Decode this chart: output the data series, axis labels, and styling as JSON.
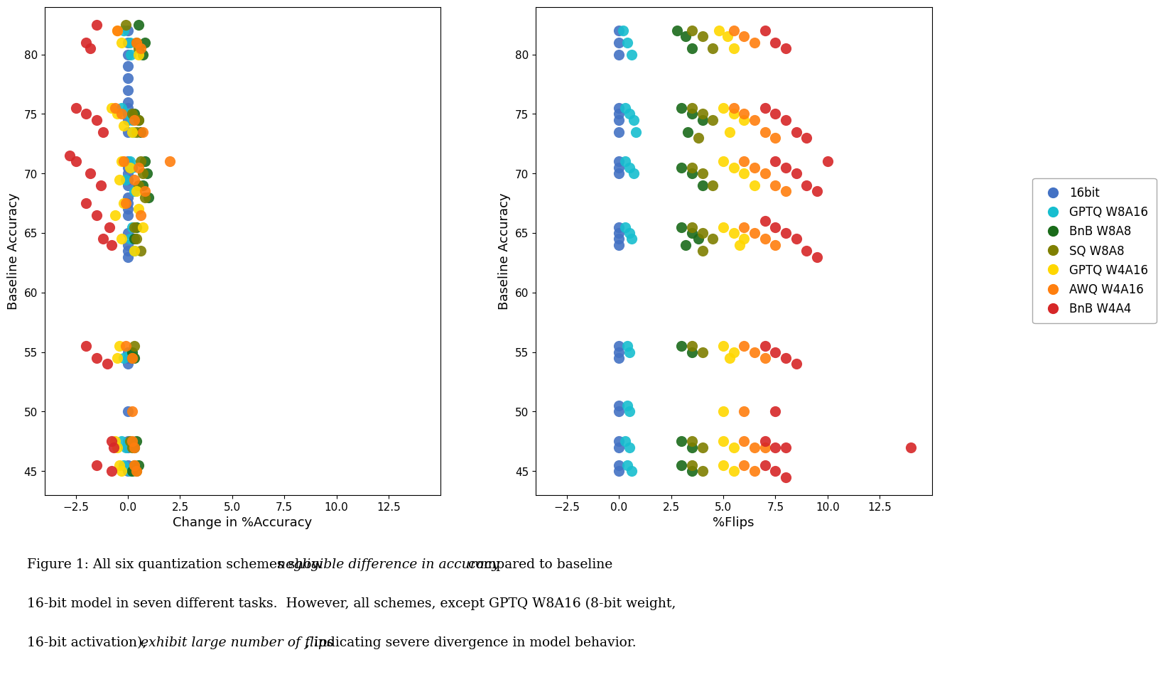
{
  "colors": {
    "16bit": "#4472C4",
    "GPTQ W8A16": "#17BECF",
    "BnB W8A8": "#1A6B1A",
    "SQ W8A8": "#7F7F00",
    "GPTQ W4A16": "#FFD700",
    "AWQ W4A16": "#FF7F0E",
    "BnB W4A4": "#D62728"
  },
  "legend_labels": [
    "16bit",
    "GPTQ W8A16",
    "BnB W8A8",
    "SQ W8A8",
    "GPTQ W4A16",
    "AWQ W4A16",
    "BnB W4A4"
  ],
  "xlabel_left": "Change in %Accuracy",
  "xlabel_right": "%Flips",
  "ylabel": "Baseline Accuracy",
  "xlim": [
    -4,
    15
  ],
  "ylim": [
    43,
    84
  ],
  "xticks": [
    -2.5,
    0.0,
    2.5,
    5.0,
    7.5,
    10.0,
    12.5
  ],
  "yticks": [
    45,
    50,
    55,
    60,
    65,
    70,
    75,
    80
  ],
  "marker_size": 120,
  "alpha": 0.9,
  "left_points": {
    "16bit": [
      [
        0.0,
        82
      ],
      [
        0.0,
        81
      ],
      [
        0.0,
        80
      ],
      [
        0.0,
        79
      ],
      [
        0.0,
        78
      ],
      [
        0.0,
        77
      ],
      [
        0.0,
        76
      ],
      [
        0.0,
        75.5
      ],
      [
        0.0,
        75
      ],
      [
        0.0,
        74.5
      ],
      [
        0.0,
        73.5
      ],
      [
        0.0,
        71
      ],
      [
        0.0,
        70.5
      ],
      [
        0.0,
        70
      ],
      [
        0.0,
        69.5
      ],
      [
        0.0,
        69
      ],
      [
        0.0,
        68
      ],
      [
        0.0,
        67.5
      ],
      [
        0.0,
        67
      ],
      [
        0.0,
        66.5
      ],
      [
        0.0,
        65
      ],
      [
        0.0,
        64
      ],
      [
        0.0,
        63.5
      ],
      [
        0.0,
        63
      ],
      [
        0.0,
        55
      ],
      [
        0.0,
        54.5
      ],
      [
        0.0,
        54
      ],
      [
        0.0,
        50
      ],
      [
        0.0,
        47.5
      ],
      [
        0.0,
        47
      ],
      [
        0.0,
        45.5
      ],
      [
        0.0,
        45
      ]
    ],
    "GPTQ W8A16": [
      [
        -0.2,
        82
      ],
      [
        0.1,
        81
      ],
      [
        0.15,
        80
      ],
      [
        -0.3,
        75.5
      ],
      [
        0.0,
        75
      ],
      [
        0.2,
        74.5
      ],
      [
        0.25,
        73.5
      ],
      [
        0.1,
        71
      ],
      [
        0.2,
        70.5
      ],
      [
        -0.1,
        69.5
      ],
      [
        0.3,
        68.5
      ],
      [
        0.2,
        65.5
      ],
      [
        0.1,
        64.5
      ],
      [
        0.3,
        63.5
      ],
      [
        0.1,
        55
      ],
      [
        -0.2,
        54.5
      ],
      [
        -0.3,
        47.5
      ],
      [
        -0.1,
        47
      ],
      [
        -0.2,
        45.5
      ],
      [
        0.1,
        45
      ]
    ],
    "BnB W8A8": [
      [
        0.5,
        82.5
      ],
      [
        0.8,
        81
      ],
      [
        0.7,
        80
      ],
      [
        0.3,
        75
      ],
      [
        0.5,
        74.5
      ],
      [
        0.6,
        73.5
      ],
      [
        0.8,
        71
      ],
      [
        0.9,
        70
      ],
      [
        0.7,
        69
      ],
      [
        1.0,
        68
      ],
      [
        0.4,
        65.5
      ],
      [
        0.3,
        64.5
      ],
      [
        0.2,
        55
      ],
      [
        0.3,
        54.5
      ],
      [
        0.4,
        47.5
      ],
      [
        0.3,
        47
      ],
      [
        0.5,
        45.5
      ],
      [
        0.2,
        45
      ]
    ],
    "SQ W8A8": [
      [
        -0.1,
        82.5
      ],
      [
        0.4,
        81
      ],
      [
        0.5,
        80.5
      ],
      [
        0.2,
        75
      ],
      [
        0.5,
        74.5
      ],
      [
        0.4,
        73.5
      ],
      [
        0.6,
        71
      ],
      [
        0.7,
        70
      ],
      [
        0.5,
        69
      ],
      [
        0.8,
        68
      ],
      [
        0.3,
        65.5
      ],
      [
        0.4,
        64.5
      ],
      [
        0.6,
        63.5
      ],
      [
        0.3,
        55.5
      ],
      [
        0.2,
        54.5
      ],
      [
        0.1,
        47.5
      ],
      [
        0.2,
        47
      ],
      [
        0.3,
        45.5
      ],
      [
        0.4,
        45
      ]
    ],
    "GPTQ W4A16": [
      [
        -0.5,
        82
      ],
      [
        -0.3,
        81
      ],
      [
        0.5,
        80
      ],
      [
        -0.8,
        75.5
      ],
      [
        -0.5,
        75
      ],
      [
        -0.2,
        74
      ],
      [
        0.2,
        73.5
      ],
      [
        -0.3,
        71
      ],
      [
        0.1,
        70.5
      ],
      [
        -0.4,
        69.5
      ],
      [
        0.4,
        68.5
      ],
      [
        -0.2,
        67.5
      ],
      [
        0.5,
        67
      ],
      [
        -0.6,
        66.5
      ],
      [
        0.7,
        65.5
      ],
      [
        -0.3,
        64.5
      ],
      [
        0.3,
        63.5
      ],
      [
        -0.4,
        55.5
      ],
      [
        -0.5,
        54.5
      ],
      [
        -0.6,
        47.5
      ],
      [
        -0.5,
        47
      ],
      [
        -0.4,
        45.5
      ],
      [
        -0.3,
        45
      ]
    ],
    "AWQ W4A16": [
      [
        -0.5,
        82
      ],
      [
        0.4,
        81
      ],
      [
        0.6,
        80.5
      ],
      [
        -0.6,
        75.5
      ],
      [
        -0.3,
        75
      ],
      [
        0.3,
        74.5
      ],
      [
        0.7,
        73.5
      ],
      [
        -0.2,
        71
      ],
      [
        0.5,
        70.5
      ],
      [
        0.3,
        69.5
      ],
      [
        0.8,
        68.5
      ],
      [
        -0.1,
        67.5
      ],
      [
        0.6,
        66.5
      ],
      [
        2.0,
        71.0
      ],
      [
        -0.1,
        55.5
      ],
      [
        0.2,
        54.5
      ],
      [
        0.2,
        50
      ],
      [
        0.2,
        47.5
      ],
      [
        0.3,
        47
      ],
      [
        0.3,
        45.5
      ],
      [
        0.4,
        45
      ]
    ],
    "BnB W4A4": [
      [
        -1.5,
        82.5
      ],
      [
        -2.0,
        81
      ],
      [
        -1.8,
        80.5
      ],
      [
        -2.5,
        75.5
      ],
      [
        -2.0,
        75
      ],
      [
        -1.5,
        74.5
      ],
      [
        -1.2,
        73.5
      ],
      [
        -2.8,
        71.5
      ],
      [
        -2.5,
        71
      ],
      [
        -1.8,
        70
      ],
      [
        -1.3,
        69
      ],
      [
        -2.0,
        67.5
      ],
      [
        -1.5,
        66.5
      ],
      [
        -0.9,
        65.5
      ],
      [
        -1.2,
        64.5
      ],
      [
        -0.8,
        64
      ],
      [
        -2.0,
        55.5
      ],
      [
        -1.5,
        54.5
      ],
      [
        -1.0,
        54
      ],
      [
        -0.8,
        47.5
      ],
      [
        -0.7,
        47
      ],
      [
        -1.5,
        45.5
      ],
      [
        -0.8,
        45
      ]
    ]
  },
  "right_points": {
    "16bit": [
      [
        0.0,
        82
      ],
      [
        0.0,
        81
      ],
      [
        0.0,
        80
      ],
      [
        0.0,
        75.5
      ],
      [
        0.0,
        75
      ],
      [
        0.0,
        74.5
      ],
      [
        0.0,
        73.5
      ],
      [
        0.0,
        71
      ],
      [
        0.0,
        70.5
      ],
      [
        0.0,
        70
      ],
      [
        0.0,
        65.5
      ],
      [
        0.0,
        65
      ],
      [
        0.0,
        64.5
      ],
      [
        0.0,
        64
      ],
      [
        0.0,
        55.5
      ],
      [
        0.0,
        55
      ],
      [
        0.0,
        54.5
      ],
      [
        0.0,
        50.5
      ],
      [
        0.0,
        50
      ],
      [
        0.0,
        47.5
      ],
      [
        0.0,
        47
      ],
      [
        0.0,
        45.5
      ],
      [
        0.0,
        45
      ]
    ],
    "GPTQ W8A16": [
      [
        0.2,
        82
      ],
      [
        0.4,
        81
      ],
      [
        0.6,
        80
      ],
      [
        0.3,
        75.5
      ],
      [
        0.5,
        75
      ],
      [
        0.7,
        74.5
      ],
      [
        0.8,
        73.5
      ],
      [
        0.3,
        71
      ],
      [
        0.5,
        70.5
      ],
      [
        0.7,
        70
      ],
      [
        0.3,
        65.5
      ],
      [
        0.5,
        65
      ],
      [
        0.6,
        64.5
      ],
      [
        0.4,
        55.5
      ],
      [
        0.5,
        55
      ],
      [
        0.4,
        50.5
      ],
      [
        0.5,
        50
      ],
      [
        0.3,
        47.5
      ],
      [
        0.5,
        47
      ],
      [
        0.4,
        45.5
      ],
      [
        0.6,
        45
      ]
    ],
    "BnB W8A8": [
      [
        2.8,
        82
      ],
      [
        3.2,
        81.5
      ],
      [
        3.5,
        80.5
      ],
      [
        3.0,
        75.5
      ],
      [
        3.5,
        75
      ],
      [
        4.0,
        74.5
      ],
      [
        3.3,
        73.5
      ],
      [
        3.0,
        70.5
      ],
      [
        3.5,
        70
      ],
      [
        4.0,
        69
      ],
      [
        3.0,
        65.5
      ],
      [
        3.5,
        65
      ],
      [
        3.8,
        64.5
      ],
      [
        3.2,
        64
      ],
      [
        3.0,
        55.5
      ],
      [
        3.5,
        55
      ],
      [
        3.0,
        47.5
      ],
      [
        3.5,
        47
      ],
      [
        3.0,
        45.5
      ],
      [
        3.5,
        45
      ]
    ],
    "SQ W8A8": [
      [
        3.5,
        82
      ],
      [
        4.0,
        81.5
      ],
      [
        4.5,
        80.5
      ],
      [
        3.5,
        75.5
      ],
      [
        4.0,
        75
      ],
      [
        4.5,
        74.5
      ],
      [
        3.8,
        73
      ],
      [
        3.5,
        70.5
      ],
      [
        4.0,
        70
      ],
      [
        4.5,
        69
      ],
      [
        3.5,
        65.5
      ],
      [
        4.0,
        65
      ],
      [
        4.5,
        64.5
      ],
      [
        4.0,
        63.5
      ],
      [
        3.5,
        55.5
      ],
      [
        4.0,
        55
      ],
      [
        3.5,
        47.5
      ],
      [
        4.0,
        47
      ],
      [
        3.5,
        45.5
      ],
      [
        4.0,
        45
      ]
    ],
    "GPTQ W4A16": [
      [
        4.8,
        82
      ],
      [
        5.2,
        81.5
      ],
      [
        5.5,
        80.5
      ],
      [
        5.0,
        75.5
      ],
      [
        5.5,
        75
      ],
      [
        6.0,
        74.5
      ],
      [
        5.3,
        73.5
      ],
      [
        5.0,
        71
      ],
      [
        5.5,
        70.5
      ],
      [
        6.0,
        70
      ],
      [
        6.5,
        69
      ],
      [
        5.0,
        65.5
      ],
      [
        5.5,
        65
      ],
      [
        6.0,
        64.5
      ],
      [
        5.8,
        64
      ],
      [
        5.0,
        55.5
      ],
      [
        5.5,
        55
      ],
      [
        5.3,
        54.5
      ],
      [
        5.0,
        50
      ],
      [
        5.0,
        47.5
      ],
      [
        5.5,
        47
      ],
      [
        5.0,
        45.5
      ],
      [
        5.5,
        45
      ]
    ],
    "AWQ W4A16": [
      [
        5.5,
        82
      ],
      [
        6.0,
        81.5
      ],
      [
        6.5,
        81
      ],
      [
        5.5,
        75.5
      ],
      [
        6.0,
        75
      ],
      [
        6.5,
        74.5
      ],
      [
        7.0,
        73.5
      ],
      [
        7.5,
        73
      ],
      [
        6.0,
        71
      ],
      [
        6.5,
        70.5
      ],
      [
        7.0,
        70
      ],
      [
        7.5,
        69
      ],
      [
        8.0,
        68.5
      ],
      [
        6.0,
        65.5
      ],
      [
        6.5,
        65
      ],
      [
        7.0,
        64.5
      ],
      [
        7.5,
        64
      ],
      [
        6.0,
        55.5
      ],
      [
        6.5,
        55
      ],
      [
        7.0,
        54.5
      ],
      [
        6.0,
        50
      ],
      [
        6.0,
        47.5
      ],
      [
        6.5,
        47
      ],
      [
        7.0,
        47
      ],
      [
        6.0,
        45.5
      ],
      [
        6.5,
        45
      ]
    ],
    "BnB W4A4": [
      [
        7.0,
        82
      ],
      [
        7.5,
        81
      ],
      [
        8.0,
        80.5
      ],
      [
        7.0,
        75.5
      ],
      [
        7.5,
        75
      ],
      [
        8.0,
        74.5
      ],
      [
        8.5,
        73.5
      ],
      [
        9.0,
        73
      ],
      [
        7.5,
        71
      ],
      [
        8.0,
        70.5
      ],
      [
        8.5,
        70
      ],
      [
        9.0,
        69
      ],
      [
        9.5,
        68.5
      ],
      [
        10.0,
        71
      ],
      [
        7.0,
        66
      ],
      [
        7.5,
        65.5
      ],
      [
        8.0,
        65
      ],
      [
        8.5,
        64.5
      ],
      [
        9.0,
        63.5
      ],
      [
        9.5,
        63
      ],
      [
        7.0,
        55.5
      ],
      [
        7.5,
        55
      ],
      [
        8.0,
        54.5
      ],
      [
        8.5,
        54
      ],
      [
        7.5,
        50
      ],
      [
        7.0,
        47.5
      ],
      [
        7.5,
        47
      ],
      [
        8.0,
        47
      ],
      [
        14.0,
        47
      ],
      [
        7.0,
        45.5
      ],
      [
        7.5,
        45
      ],
      [
        8.0,
        44.5
      ]
    ]
  }
}
